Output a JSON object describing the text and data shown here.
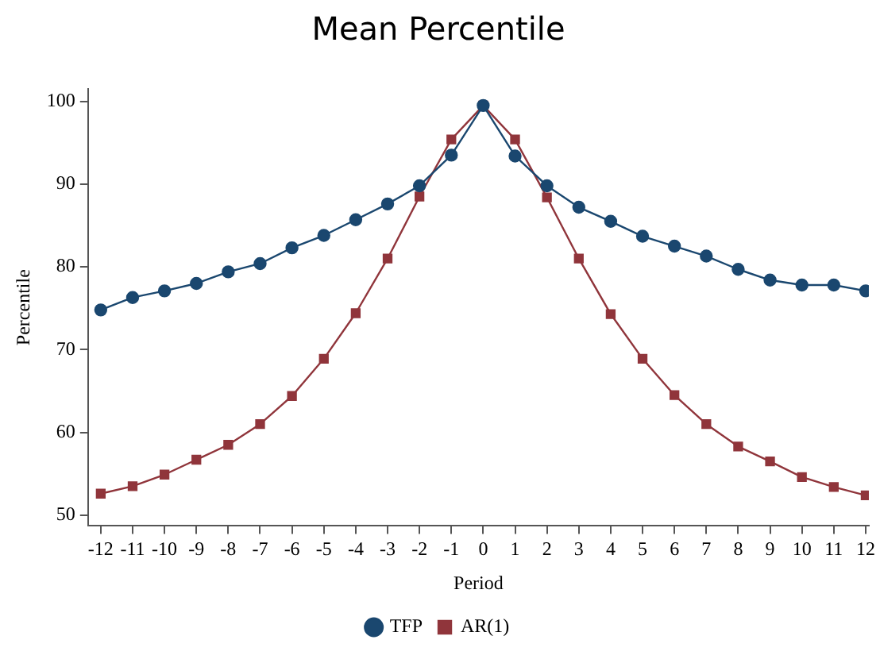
{
  "chart_data": {
    "type": "line",
    "title": "Mean Percentile",
    "xlabel": "Period",
    "ylabel": "Percentile",
    "x": [
      -12,
      -11,
      -10,
      -9,
      -8,
      -7,
      -6,
      -5,
      -4,
      -3,
      -2,
      -1,
      0,
      1,
      2,
      3,
      4,
      5,
      6,
      7,
      8,
      9,
      10,
      11,
      12
    ],
    "series": [
      {
        "name": "TFP",
        "color": "#1a476f",
        "marker": "circle",
        "values": [
          74.8,
          76.3,
          77.1,
          78.0,
          79.4,
          80.4,
          82.3,
          83.8,
          85.7,
          87.6,
          89.8,
          93.5,
          99.5,
          93.4,
          89.8,
          87.2,
          85.5,
          83.7,
          82.5,
          81.3,
          79.7,
          78.4,
          77.8,
          77.8,
          77.1
        ]
      },
      {
        "name": "AR(1)",
        "color": "#90353b",
        "marker": "square",
        "values": [
          52.6,
          53.5,
          54.9,
          56.7,
          58.5,
          61.0,
          64.4,
          68.9,
          74.4,
          81.0,
          88.5,
          95.4,
          99.5,
          95.4,
          88.4,
          81.0,
          74.3,
          68.9,
          64.5,
          61.0,
          58.3,
          56.5,
          54.6,
          53.4,
          52.4
        ]
      }
    ],
    "xlim": [
      -12.4,
      12.1
    ],
    "xticks": [
      -12,
      -11,
      -10,
      -9,
      -8,
      -7,
      -6,
      -5,
      -4,
      -3,
      -2,
      -1,
      0,
      1,
      2,
      3,
      4,
      5,
      6,
      7,
      8,
      9,
      10,
      11,
      12
    ],
    "ylim": [
      48.7,
      101.5
    ],
    "yticks": [
      50,
      60,
      70,
      80,
      90,
      100
    ],
    "grid": false,
    "legend": "bottom"
  }
}
